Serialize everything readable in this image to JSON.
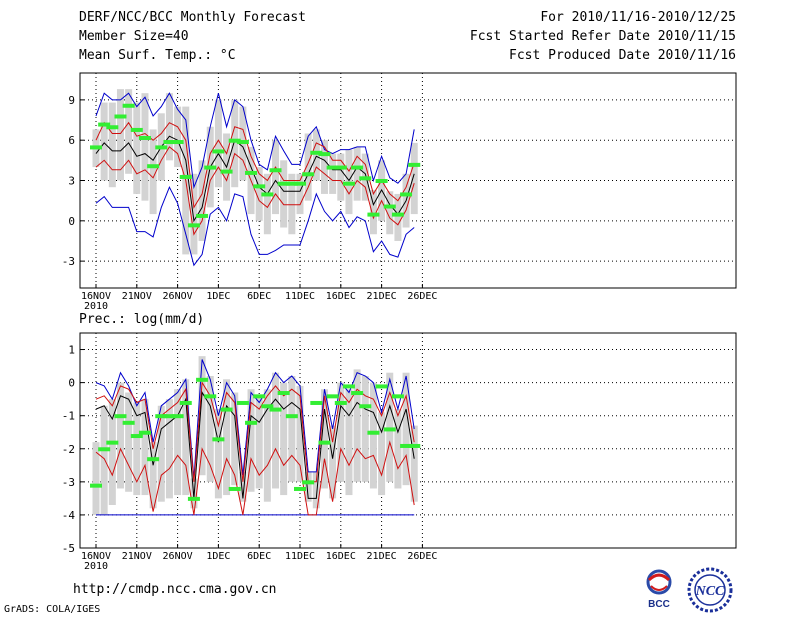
{
  "header": {
    "title": "DERF/NCC/BCC Monthly Forecast",
    "member_size": "Member Size=40",
    "variable": "Mean Surf. Temp.: °C",
    "period": "For 2010/11/16-2010/12/25",
    "fcst_started": "Fcst Started Refer Date 2010/11/15",
    "fcst_produced": "Fcst Produced Date 2010/11/16"
  },
  "footer": {
    "url": "http://cmdp.ncc.cma.gov.cn",
    "credit": "GrADS: COLA/IGES",
    "logo_bcc": "BCC",
    "logo_ncc": "NCC"
  },
  "colors": {
    "mean": "#000000",
    "std": "#d01010",
    "extreme": "#0000cc",
    "obs": "#33ee33",
    "box": "#d3d3d3"
  },
  "chart_data": [
    {
      "type": "line",
      "title": "Mean Surf. Temp.: °C",
      "ylim": [
        -5,
        11
      ],
      "yticks": [
        -3,
        0,
        3,
        6,
        9
      ],
      "xtick_labels": [
        "16NOV",
        "21NOV",
        "26NOV",
        "1DEC",
        "6DEC",
        "11DEC",
        "16DEC",
        "21DEC",
        "26DEC"
      ],
      "xtick_year": "2010",
      "days": 40,
      "series": [
        {
          "name": "ensemble mean",
          "values": [
            5.0,
            5.8,
            5.2,
            5.2,
            5.8,
            4.8,
            5.0,
            4.5,
            5.5,
            6.3,
            6.0,
            4.5,
            0.0,
            1.0,
            4.0,
            5.0,
            4.0,
            6.0,
            5.5,
            4.0,
            2.5,
            2.0,
            3.0,
            2.2,
            2.2,
            2.2,
            3.5,
            4.8,
            4.5,
            3.8,
            3.8,
            3.0,
            4.0,
            3.5,
            1.2,
            2.3,
            1.2,
            0.5,
            1.5,
            3.5
          ]
        },
        {
          "name": "upper std",
          "values": [
            6.0,
            7.3,
            6.5,
            6.5,
            7.3,
            6.3,
            6.5,
            6.0,
            6.5,
            7.3,
            7.0,
            6.0,
            1.0,
            2.0,
            5.0,
            6.0,
            5.0,
            7.0,
            6.8,
            4.8,
            3.5,
            3.0,
            4.0,
            3.0,
            3.0,
            3.0,
            4.3,
            5.8,
            5.5,
            4.5,
            4.5,
            3.7,
            4.8,
            4.2,
            2.0,
            3.0,
            2.0,
            1.5,
            2.5,
            4.3
          ]
        },
        {
          "name": "lower std",
          "values": [
            4.0,
            4.5,
            3.8,
            3.8,
            4.5,
            3.5,
            3.8,
            3.2,
            4.5,
            5.5,
            5.0,
            3.0,
            -1.0,
            0.0,
            3.0,
            4.0,
            3.0,
            5.0,
            4.5,
            3.0,
            1.5,
            1.0,
            2.0,
            1.2,
            1.2,
            1.2,
            2.5,
            4.0,
            3.5,
            3.0,
            3.0,
            2.0,
            3.0,
            2.5,
            0.2,
            1.5,
            0.2,
            -0.3,
            0.8,
            2.8
          ]
        },
        {
          "name": "max member",
          "values": [
            7.8,
            9.5,
            9.0,
            9.0,
            9.5,
            8.5,
            9.2,
            7.8,
            8.5,
            9.5,
            8.3,
            7.5,
            2.5,
            4.0,
            7.0,
            9.5,
            7.0,
            9.0,
            8.5,
            6.0,
            4.2,
            3.8,
            6.3,
            5.2,
            4.2,
            4.2,
            6.3,
            7.0,
            5.3,
            5.0,
            5.3,
            5.3,
            5.5,
            5.5,
            3.0,
            4.8,
            3.2,
            2.8,
            3.5,
            6.8
          ]
        },
        {
          "name": "min member",
          "values": [
            1.3,
            1.8,
            1.0,
            1.0,
            1.0,
            -0.8,
            -0.8,
            -1.2,
            1.0,
            2.5,
            1.3,
            -1.0,
            -3.3,
            -2.5,
            0.5,
            1.0,
            0.0,
            2.0,
            1.8,
            -1.0,
            -2.5,
            -2.5,
            -2.2,
            -1.8,
            -1.8,
            -1.8,
            0.0,
            2.0,
            0.7,
            0.0,
            0.7,
            -0.5,
            0.3,
            0.0,
            -2.3,
            -1.5,
            -2.5,
            -2.7,
            -1.0,
            -0.5
          ]
        },
        {
          "name": "box high",
          "values": [
            6.8,
            8.8,
            8.8,
            9.8,
            9.8,
            8.8,
            9.5,
            6.8,
            8.0,
            9.5,
            8.5,
            8.5,
            3.5,
            4.5,
            7.0,
            9.0,
            6.5,
            9.0,
            8.5,
            5.5,
            4.0,
            3.5,
            6.0,
            4.5,
            3.5,
            3.5,
            6.5,
            6.8,
            6.0,
            5.0,
            5.0,
            5.3,
            5.5,
            5.0,
            2.3,
            4.5,
            2.2,
            2.0,
            3.5,
            5.8
          ]
        },
        {
          "name": "box low",
          "values": [
            4.0,
            3.0,
            2.5,
            3.0,
            3.5,
            2.0,
            1.5,
            0.5,
            3.0,
            4.5,
            4.0,
            -2.5,
            -2.5,
            -1.5,
            1.0,
            2.5,
            1.5,
            2.5,
            3.0,
            0.5,
            0.0,
            -1.0,
            0.5,
            -0.5,
            -1.0,
            0.5,
            1.5,
            3.0,
            2.0,
            2.0,
            1.5,
            0.5,
            1.5,
            1.5,
            -1.0,
            0.0,
            -1.0,
            -1.5,
            -0.5,
            0.5
          ]
        },
        {
          "name": "observation",
          "values": [
            5.5,
            7.2,
            7.0,
            7.8,
            8.6,
            6.8,
            6.2,
            4.1,
            5.5,
            5.9,
            5.9,
            3.3,
            -0.3,
            0.4,
            4.0,
            5.2,
            3.7,
            6.0,
            5.9,
            3.6,
            2.6,
            2.0,
            3.8,
            2.8,
            2.8,
            2.8,
            3.5,
            5.1,
            5.0,
            4.0,
            4.0,
            2.8,
            4.0,
            3.2,
            0.5,
            3.0,
            1.1,
            0.5,
            2.0,
            4.2
          ]
        }
      ]
    },
    {
      "type": "line",
      "title": "Prec.: log(mm/d)",
      "ylim": [
        -5,
        1.5
      ],
      "yticks": [
        -5,
        -4,
        -3,
        -2,
        -1,
        0,
        1
      ],
      "xtick_labels": [
        "16NOV",
        "21NOV",
        "26NOV",
        "1DEC",
        "6DEC",
        "11DEC",
        "16DEC",
        "21DEC",
        "26DEC"
      ],
      "xtick_year": "2010",
      "days": 40,
      "series": [
        {
          "name": "ensemble mean",
          "values": [
            -0.8,
            -0.7,
            -1.1,
            -0.4,
            -0.5,
            -1.0,
            -0.9,
            -2.5,
            -1.4,
            -1.2,
            -1.0,
            -0.5,
            -3.5,
            -0.3,
            -0.7,
            -1.8,
            -0.7,
            -1.0,
            -3.5,
            -1.0,
            -1.2,
            -0.8,
            -0.5,
            -0.8,
            -0.6,
            -0.8,
            -3.5,
            -3.5,
            -0.8,
            -2.3,
            -0.7,
            -1.0,
            -0.6,
            -0.8,
            -0.9,
            -1.5,
            -0.7,
            -1.5,
            -0.8,
            -2.3
          ]
        },
        {
          "name": "upper std",
          "values": [
            -0.5,
            -0.4,
            -0.7,
            -0.1,
            -0.2,
            -0.6,
            -0.5,
            -2.0,
            -1.0,
            -0.8,
            -0.6,
            -0.2,
            -3.0,
            0.0,
            -0.4,
            -1.3,
            -0.3,
            -0.6,
            -3.0,
            -0.6,
            -0.8,
            -0.4,
            -0.1,
            -0.4,
            -0.2,
            -0.4,
            -3.0,
            -3.0,
            -0.4,
            -1.8,
            -0.3,
            -0.6,
            -0.2,
            -0.4,
            -0.5,
            -1.0,
            -0.3,
            -1.0,
            -0.4,
            -1.8
          ]
        },
        {
          "name": "lower std",
          "values": [
            -2.1,
            -2.3,
            -2.8,
            -2.0,
            -2.5,
            -3.0,
            -2.5,
            -3.9,
            -2.8,
            -2.6,
            -2.2,
            -2.5,
            -4.0,
            -2.0,
            -2.5,
            -3.2,
            -2.3,
            -2.8,
            -4.0,
            -2.3,
            -2.8,
            -2.5,
            -2.0,
            -2.5,
            -2.2,
            -2.5,
            -4.0,
            -4.0,
            -2.3,
            -3.6,
            -2.0,
            -2.5,
            -2.0,
            -2.3,
            -2.2,
            -2.8,
            -1.8,
            -2.6,
            -2.2,
            -3.7
          ]
        },
        {
          "name": "max member",
          "values": [
            0.0,
            -0.1,
            -0.5,
            0.3,
            -0.1,
            -0.7,
            -0.3,
            -1.8,
            -0.7,
            -0.5,
            -0.3,
            0.1,
            -2.9,
            0.7,
            0.1,
            -1.0,
            0.0,
            -0.4,
            -2.8,
            -0.3,
            -0.6,
            -0.2,
            0.3,
            0.0,
            0.2,
            -0.1,
            -2.7,
            -2.7,
            -0.2,
            -1.4,
            0.0,
            -0.3,
            0.3,
            0.2,
            0.0,
            -0.9,
            0.1,
            -0.8,
            0.2,
            -1.4
          ]
        },
        {
          "name": "min member",
          "values": [
            -4.0,
            -4.0,
            -4.0,
            -4.0,
            -4.0,
            -4.0,
            -4.0,
            -4.0,
            -4.0,
            -4.0,
            -4.0,
            -4.0,
            -4.0,
            -4.0,
            -4.0,
            -4.0,
            -4.0,
            -4.0,
            -4.0,
            -4.0,
            -4.0,
            -4.0,
            -4.0,
            -4.0,
            -4.0,
            -4.0,
            -4.0,
            -4.0,
            -4.0,
            -4.0,
            -4.0,
            -4.0,
            -4.0,
            -4.0,
            -4.0,
            -4.0,
            -4.0,
            -4.0,
            -4.0,
            -4.0
          ]
        },
        {
          "name": "box high",
          "values": [
            -1.8,
            -0.7,
            -0.5,
            0.0,
            -0.3,
            -0.6,
            -0.5,
            -1.8,
            -0.7,
            -0.5,
            -0.2,
            0.1,
            -2.9,
            0.8,
            0.2,
            -0.8,
            0.1,
            -0.3,
            -2.7,
            -0.2,
            -0.4,
            -0.2,
            0.3,
            0.0,
            0.2,
            -0.1,
            -2.7,
            -2.7,
            -0.2,
            -1.3,
            0.0,
            -0.2,
            0.4,
            0.2,
            0.0,
            -0.9,
            0.3,
            -0.8,
            0.3,
            -1.3
          ]
        },
        {
          "name": "box low",
          "values": [
            -4.0,
            -4.0,
            -3.7,
            -3.2,
            -3.3,
            -3.4,
            -3.4,
            -3.8,
            -3.6,
            -3.5,
            -3.4,
            -3.4,
            -3.8,
            -2.8,
            -3.0,
            -3.5,
            -3.4,
            -3.1,
            -3.6,
            -3.3,
            -3.2,
            -3.6,
            -3.2,
            -3.4,
            -3.0,
            -3.0,
            -3.6,
            -3.8,
            -3.2,
            -3.5,
            -3.0,
            -3.4,
            -3.0,
            -3.0,
            -3.2,
            -3.4,
            -3.0,
            -3.2,
            -3.1,
            -3.6
          ]
        },
        {
          "name": "observation",
          "values": [
            -3.1,
            -2.0,
            -1.8,
            -1.0,
            -1.2,
            -1.6,
            -1.5,
            -2.3,
            -1.0,
            -1.0,
            -1.0,
            -0.6,
            -3.5,
            0.1,
            -0.4,
            -1.7,
            -0.8,
            -3.2,
            -0.6,
            -1.2,
            -0.4,
            -0.7,
            -0.8,
            -0.3,
            -1.0,
            -3.2,
            -3.0,
            -0.6,
            -1.8,
            -0.4,
            -0.6,
            -0.1,
            -0.3,
            -0.7,
            -1.5,
            -0.1,
            -1.4,
            -0.4,
            -1.9,
            -1.9
          ]
        }
      ]
    }
  ]
}
